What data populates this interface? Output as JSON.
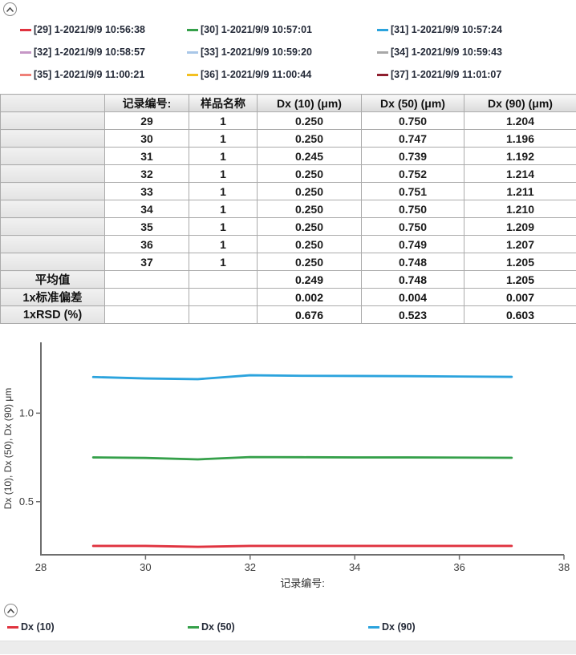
{
  "icons": {
    "collapse": "chevron-up"
  },
  "top_legend": {
    "items": [
      {
        "label": "[29] 1-2021/9/9 10:56:38",
        "color": "#e0333f"
      },
      {
        "label": "[30] 1-2021/9/9 10:57:01",
        "color": "#35a04a"
      },
      {
        "label": "[31] 1-2021/9/9 10:57:24",
        "color": "#2ba3dd"
      },
      {
        "label": "[32] 1-2021/9/9 10:58:57",
        "color": "#c697c6"
      },
      {
        "label": "[33] 1-2021/9/9 10:59:20",
        "color": "#a9c7e8"
      },
      {
        "label": "[34] 1-2021/9/9 10:59:43",
        "color": "#a8a8a8"
      },
      {
        "label": "[35] 1-2021/9/9 11:00:21",
        "color": "#ef8078"
      },
      {
        "label": "[36] 1-2021/9/9 11:00:44",
        "color": "#f3c021"
      },
      {
        "label": "[37] 1-2021/9/9 11:01:07",
        "color": "#8f1f2e"
      }
    ]
  },
  "table": {
    "headers": [
      "",
      "记录编号:",
      "样品名称",
      "Dx (10) (μm)",
      "Dx (50) (μm)",
      "Dx (90) (μm)"
    ],
    "rows": [
      [
        "29",
        "1",
        "0.250",
        "0.750",
        "1.204"
      ],
      [
        "30",
        "1",
        "0.250",
        "0.747",
        "1.196"
      ],
      [
        "31",
        "1",
        "0.245",
        "0.739",
        "1.192"
      ],
      [
        "32",
        "1",
        "0.250",
        "0.752",
        "1.214"
      ],
      [
        "33",
        "1",
        "0.250",
        "0.751",
        "1.211"
      ],
      [
        "34",
        "1",
        "0.250",
        "0.750",
        "1.210"
      ],
      [
        "35",
        "1",
        "0.250",
        "0.750",
        "1.209"
      ],
      [
        "36",
        "1",
        "0.250",
        "0.749",
        "1.207"
      ],
      [
        "37",
        "1",
        "0.250",
        "0.748",
        "1.205"
      ]
    ],
    "summary": [
      {
        "label": "平均值",
        "values": [
          "",
          "",
          "0.249",
          "0.748",
          "1.205"
        ]
      },
      {
        "label": "1x标准偏差",
        "values": [
          "",
          "",
          "0.002",
          "0.004",
          "0.007"
        ]
      },
      {
        "label": "1xRSD (%)",
        "values": [
          "",
          "",
          "0.676",
          "0.523",
          "0.603"
        ]
      }
    ]
  },
  "chart_data": {
    "type": "line",
    "x": [
      29,
      30,
      31,
      32,
      33,
      34,
      35,
      36,
      37
    ],
    "series": [
      {
        "name": "Dx (10)",
        "color": "#e0333f",
        "values": [
          0.25,
          0.25,
          0.245,
          0.25,
          0.25,
          0.25,
          0.25,
          0.25,
          0.25
        ]
      },
      {
        "name": "Dx (50)",
        "color": "#35a04a",
        "values": [
          0.75,
          0.747,
          0.739,
          0.752,
          0.751,
          0.75,
          0.75,
          0.749,
          0.748
        ]
      },
      {
        "name": "Dx (90)",
        "color": "#2ba3dd",
        "values": [
          1.204,
          1.196,
          1.192,
          1.214,
          1.211,
          1.21,
          1.209,
          1.207,
          1.205
        ]
      }
    ],
    "title": "",
    "xlabel": "记录编号:",
    "ylabel": "Dx (10), Dx (50), Dx (90) μm",
    "xlim": [
      28,
      38
    ],
    "ylim": [
      0.2,
      1.4
    ],
    "x_ticks": [
      28,
      30,
      32,
      34,
      36,
      38
    ],
    "y_ticks": [
      0.5,
      1.0
    ],
    "y_tick_labels": [
      "0.5",
      "1.0"
    ],
    "grid": false,
    "legend_position": "bottom"
  },
  "bottom_legend": {
    "items": [
      {
        "label": "Dx (10)",
        "color": "#e0333f"
      },
      {
        "label": "Dx (50)",
        "color": "#35a04a"
      },
      {
        "label": "Dx (90)",
        "color": "#2ba3dd"
      }
    ]
  }
}
